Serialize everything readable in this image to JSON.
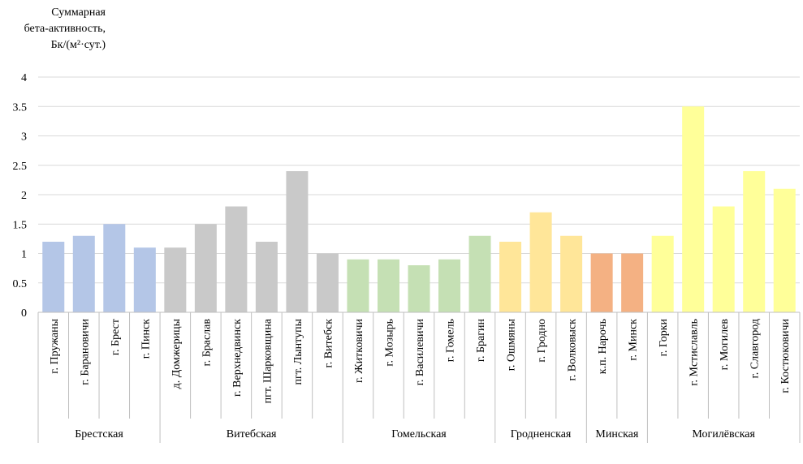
{
  "chart_data": {
    "type": "bar",
    "ylabel_lines": [
      "Суммарная",
      "бета-активность,",
      "Бк/(м²·сут.)"
    ],
    "ylim": [
      0,
      4
    ],
    "yticks": [
      "0",
      "0.5",
      "1",
      "1.5",
      "2",
      "2.5",
      "3",
      "3.5",
      "4"
    ],
    "grid": true,
    "categories": [
      "г. Пружаны",
      "г. Барановичи",
      "г. Брест",
      "г. Пинск",
      "д. Домжерицы",
      "г. Браслав",
      "г. Верхнедвинск",
      "пгт. Шарковщина",
      "пгт. Лынтупы",
      "г. Витебск",
      "г. Житковичи",
      "г. Мозырь",
      "г. Василевичи",
      "г. Гомель",
      "г. Брагин",
      "г. Ошмяны",
      "г. Гродно",
      "г. Волковыск",
      "к.п. Нарочь",
      "г. Минск",
      "г. Горки",
      "г. Мстиславль",
      "г. Могилев",
      "г. Славгород",
      "г. Костюковичи"
    ],
    "values": [
      1.2,
      1.3,
      1.5,
      1.1,
      1.1,
      1.5,
      1.8,
      1.2,
      2.4,
      1.0,
      0.9,
      0.9,
      0.8,
      0.9,
      1.3,
      1.2,
      1.7,
      1.3,
      1.0,
      1.0,
      1.3,
      3.5,
      1.8,
      2.4,
      2.1
    ],
    "groups": [
      {
        "name": "Брестская",
        "start": 0,
        "count": 4,
        "color": "#b4c6e7"
      },
      {
        "name": "Витебская",
        "start": 4,
        "count": 6,
        "color": "#c9c9c9"
      },
      {
        "name": "Гомельская",
        "start": 10,
        "count": 5,
        "color": "#c5e0b4"
      },
      {
        "name": "Гродненская",
        "start": 15,
        "count": 3,
        "color": "#ffe699"
      },
      {
        "name": "Минская",
        "start": 18,
        "count": 2,
        "color": "#f4b183"
      },
      {
        "name": "Могилёвская",
        "start": 20,
        "count": 5,
        "color": "#ffff99"
      }
    ]
  }
}
